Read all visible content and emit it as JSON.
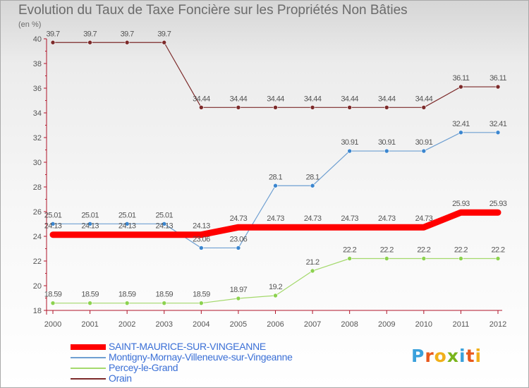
{
  "title": "Evolution du Taux de Taxe Foncière sur les Propriétés Non Bâties",
  "unit_label": "(en %)",
  "logo": {
    "letters": [
      "P",
      "r",
      "o",
      "x",
      "i",
      "t",
      "i"
    ],
    "colors": [
      "#3aa1dc",
      "#e8581c",
      "#f1b01a",
      "#7ab51d",
      "#3aa1dc",
      "#e8581c",
      "#f1b01a"
    ]
  },
  "colors": {
    "axis": "#b0152a",
    "background_top": "#d6d6d6",
    "background_bottom": "#ffffff"
  },
  "chart_data": {
    "type": "line",
    "title": "Evolution du Taux de Taxe Foncière sur les Propriétés Non Bâties",
    "ylabel": "(en %)",
    "x": [
      "2000",
      "2001",
      "2002",
      "2003",
      "2004",
      "2005",
      "2006",
      "2007",
      "2008",
      "2009",
      "2010",
      "2011",
      "2012"
    ],
    "ylim": [
      18,
      40
    ],
    "yticks": [
      "18",
      "20",
      "22",
      "24",
      "26",
      "28",
      "30",
      "32",
      "34",
      "36",
      "38",
      "40"
    ],
    "grid": false,
    "legend_position": "bottom-left",
    "series": [
      {
        "name": "SAINT-MAURICE-SUR-VINGEANNE",
        "color": "#ff0000",
        "width": 9,
        "values": [
          24.13,
          24.13,
          24.13,
          24.13,
          24.13,
          24.73,
          24.73,
          24.73,
          24.73,
          24.73,
          24.73,
          25.93,
          25.93
        ],
        "labels": [
          "24.13",
          "24.13",
          "24.13",
          "24.13",
          "24.13",
          "24.73",
          "24.73",
          "24.73",
          "24.73",
          "24.73",
          "24.73",
          "25.93",
          "25.93"
        ]
      },
      {
        "name": "Montigny-Mornay-Villeneuve-sur-Vingeanne",
        "color": "#6e9fd1",
        "width": 1.2,
        "marker": "#3b86cf",
        "values": [
          25.01,
          25.01,
          25.01,
          25.01,
          23.06,
          23.06,
          28.1,
          28.1,
          30.91,
          30.91,
          30.91,
          32.41,
          32.41
        ],
        "labels": [
          "25.01",
          "25.01",
          "25.01",
          "25.01",
          "23.06",
          "23.06",
          "28.1",
          "28.1",
          "30.91",
          "30.91",
          "30.91",
          "32.41",
          "32.41"
        ]
      },
      {
        "name": "Percey-le-Grand",
        "color": "#a4d96c",
        "width": 1.2,
        "marker": "#8cd24f",
        "values": [
          18.59,
          18.59,
          18.59,
          18.59,
          18.59,
          18.97,
          19.2,
          21.2,
          22.2,
          22.2,
          22.2,
          22.2,
          22.2
        ],
        "labels": [
          "18.59",
          "18.59",
          "18.59",
          "18.59",
          "18.59",
          "18.97",
          "19.2",
          "21.2",
          "22.2",
          "22.2",
          "22.2",
          "22.2",
          "22.2"
        ]
      },
      {
        "name": "Orain",
        "color": "#7c2a2a",
        "width": 1.2,
        "marker": "#7c2a2a",
        "values": [
          39.7,
          39.7,
          39.7,
          39.7,
          34.44,
          34.44,
          34.44,
          34.44,
          34.44,
          34.44,
          34.44,
          36.11,
          36.11
        ],
        "labels": [
          "39.7",
          "39.7",
          "39.7",
          "39.7",
          "34.44",
          "34.44",
          "34.44",
          "34.44",
          "34.44",
          "34.44",
          "34.44",
          "36.11",
          "36.11"
        ]
      }
    ]
  }
}
